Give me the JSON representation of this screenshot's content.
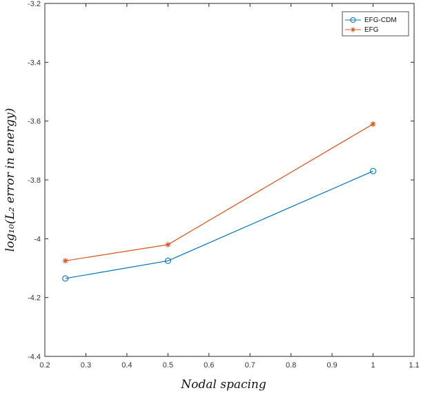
{
  "chart_data": {
    "type": "line",
    "title": "",
    "xlabel": "Nodal spacing",
    "ylabel": "log₁₀(L₂ error in energy)",
    "xlim": [
      0.2,
      1.1
    ],
    "ylim": [
      -4.4,
      -3.2
    ],
    "x_ticks": [
      "0.2",
      "0.3",
      "0.4",
      "0.5",
      "0.6",
      "0.7",
      "0.8",
      "0.9",
      "1",
      "1.1"
    ],
    "y_ticks": [
      "-3.2",
      "-3.4",
      "-3.6",
      "-3.8",
      "-4",
      "-4.2",
      "-4.4"
    ],
    "grid": false,
    "legend_position": "top-right",
    "series": [
      {
        "name": "EFG-CDM",
        "color": "#0072BD",
        "marker": "circle",
        "x": [
          0.25,
          0.5,
          1
        ],
        "y": [
          -4.135,
          -4.075,
          -3.77
        ]
      },
      {
        "name": "EFG",
        "color": "#D95319",
        "marker": "asterisk",
        "x": [
          0.25,
          0.5,
          1
        ],
        "y": [
          -4.075,
          -4.02,
          -3.61
        ]
      }
    ]
  }
}
